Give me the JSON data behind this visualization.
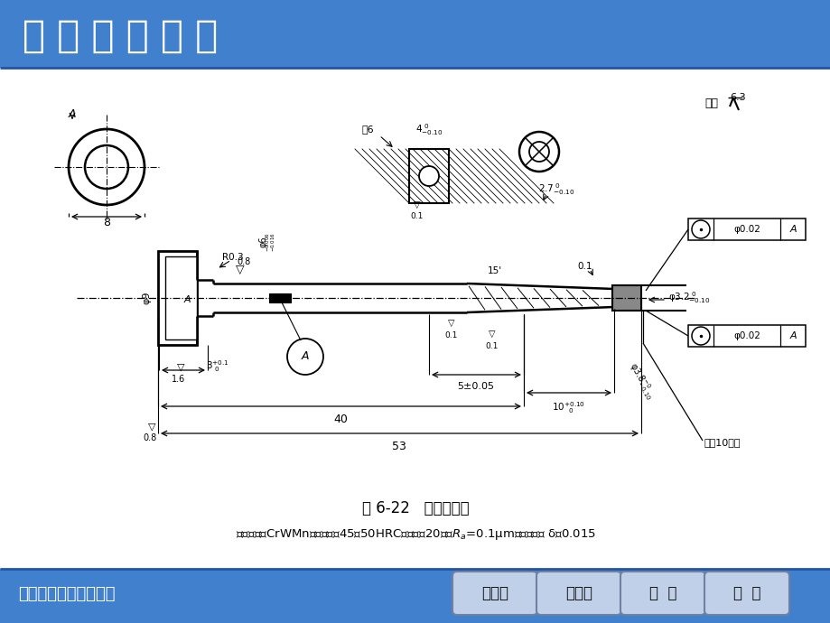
{
  "title": "模 具 制 造 技 术",
  "footer_left": "安徽机电职业技术学院",
  "footer_buttons": [
    "上一页",
    "下一页",
    "退  出",
    "后  退"
  ],
  "fig_caption": "图 6-22   塑料模型芯",
  "material_text": "型芯材料：CrWMn；热处理：45～50HRC；数量：20件；$R_a$=0.1μm；表面镀铬 δ＝0.015",
  "header_bg": "#4080CC",
  "header_text_color": "#FFFFFF",
  "footer_bg": "#4080CC",
  "body_bg": "#FFFFFF",
  "button_face": "#C8D8EE",
  "button_edge": "#8090A8"
}
